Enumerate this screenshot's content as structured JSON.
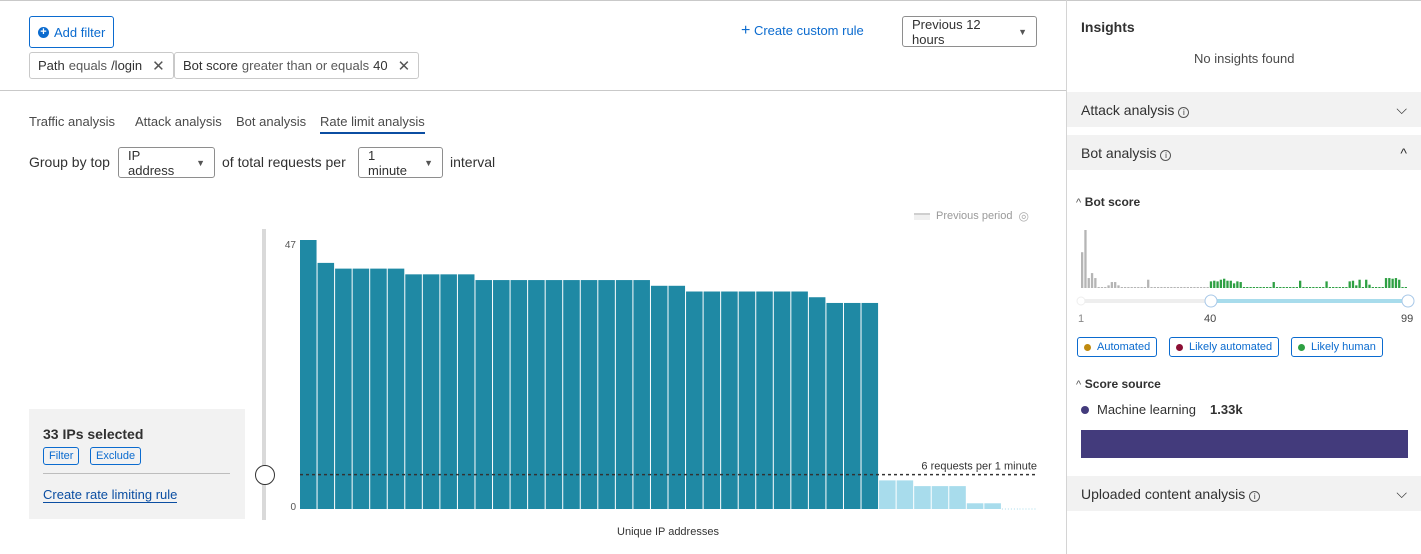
{
  "toolbar": {
    "add_filter": "Add filter",
    "filters": [
      {
        "field": "Path",
        "operator": "equals",
        "value": "/login"
      },
      {
        "field": "Bot score",
        "operator": "greater than or equals",
        "value": "40"
      }
    ],
    "create_custom_rule": "Create custom rule",
    "time_range": "Previous 12 hours"
  },
  "tabs": [
    {
      "label": "Traffic analysis",
      "active": false
    },
    {
      "label": "Attack analysis",
      "active": false
    },
    {
      "label": "Bot analysis",
      "active": false
    },
    {
      "label": "Rate limit analysis",
      "active": true
    }
  ],
  "group_by": {
    "prefix": "Group by top",
    "field": "IP address",
    "middle": "of total requests per",
    "interval": "1 minute",
    "suffix": "interval"
  },
  "chart_data": {
    "type": "bar",
    "xlabel": "Unique IP addresses",
    "ylabel": "",
    "ylim": [
      0,
      47
    ],
    "y_ticks": [
      "0",
      "47"
    ],
    "legend": {
      "label": "Previous period",
      "placement": "top-right"
    },
    "threshold": {
      "value": 6,
      "label": "6 requests per 1 minute"
    },
    "values": [
      47,
      43,
      42,
      42,
      42,
      42,
      41,
      41,
      41,
      41,
      40,
      40,
      40,
      40,
      40,
      40,
      40,
      40,
      40,
      40,
      39,
      39,
      38,
      38,
      38,
      38,
      38,
      38,
      38,
      37,
      36,
      36,
      36,
      5,
      5,
      4,
      4,
      4,
      1,
      1,
      0,
      0
    ],
    "selected_count": 33,
    "colors": {
      "selected": "#1f89a4",
      "unselected": "#a8dcec",
      "threshold": "#333333"
    }
  },
  "selection_popup": {
    "title": "33 IPs selected",
    "filter": "Filter",
    "exclude": "Exclude",
    "create_rule": "Create rate limiting rule"
  },
  "insights": {
    "title": "Insights",
    "empty": "No insights found",
    "attack_analysis": "Attack analysis",
    "bot_analysis": "Bot analysis",
    "bot_score": {
      "title": "Bot score",
      "histogram": [
        108,
        175,
        30,
        45,
        30,
        3,
        3,
        3,
        8,
        18,
        18,
        8,
        3,
        3,
        3,
        3,
        3,
        3,
        3,
        3,
        25,
        3,
        3,
        3,
        3,
        3,
        3,
        3,
        3,
        3,
        3,
        3,
        3,
        3,
        3,
        3,
        3,
        3,
        3,
        20,
        22,
        20,
        25,
        28,
        22,
        22,
        14,
        20,
        18,
        3,
        3,
        3,
        3,
        3,
        3,
        3,
        3,
        3,
        18,
        3,
        3,
        3,
        3,
        3,
        3,
        3,
        22,
        3,
        3,
        3,
        3,
        3,
        3,
        3,
        20,
        3,
        3,
        3,
        3,
        3,
        3,
        20,
        22,
        8,
        25,
        3,
        25,
        10,
        3,
        3,
        3,
        3,
        30,
        30,
        28,
        30,
        25,
        3,
        3
      ],
      "range_min": "1",
      "range_selected": "40",
      "range_max": "99",
      "legend": [
        {
          "label": "Automated",
          "color": "#c08a0f"
        },
        {
          "label": "Likely automated",
          "color": "#8c0f34"
        },
        {
          "label": "Likely human",
          "color": "#2ea043"
        }
      ],
      "colors": {
        "below": "#b5b5b5",
        "above": "#2ea043"
      }
    },
    "score_source": {
      "title": "Score source",
      "items": [
        {
          "label": "Machine learning",
          "value": "1.33k",
          "color": "#433b7c",
          "fraction": 1.0
        }
      ]
    },
    "uploaded_content": "Uploaded content analysis"
  }
}
